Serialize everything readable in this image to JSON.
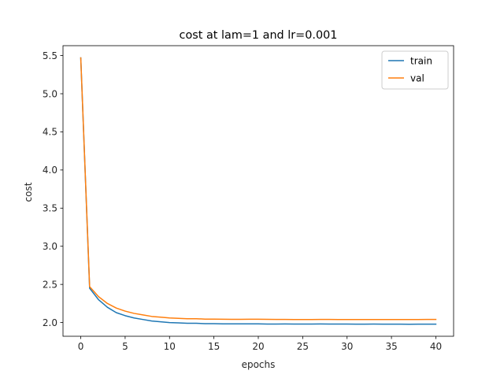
{
  "chart_data": {
    "type": "line",
    "title": "cost at lam=1 and lr=0.001",
    "xlabel": "epochs",
    "ylabel": "cost",
    "xlim": [
      -2,
      42
    ],
    "ylim": [
      1.82,
      5.63
    ],
    "xticks": [
      0,
      5,
      10,
      15,
      20,
      25,
      30,
      35,
      40
    ],
    "yticks": [
      2.0,
      2.5,
      3.0,
      3.5,
      4.0,
      4.5,
      5.0,
      5.5
    ],
    "ytick_labels": [
      "2.0",
      "2.5",
      "3.0",
      "3.5",
      "4.0",
      "4.5",
      "5.0",
      "5.5"
    ],
    "grid": false,
    "legend_position": "top-right",
    "x": [
      0,
      1,
      2,
      3,
      4,
      5,
      6,
      7,
      8,
      9,
      10,
      11,
      12,
      13,
      14,
      15,
      16,
      17,
      18,
      19,
      20,
      21,
      22,
      23,
      24,
      25,
      26,
      27,
      28,
      29,
      30,
      31,
      32,
      33,
      34,
      35,
      36,
      37,
      38,
      39,
      40
    ],
    "series": [
      {
        "name": "train",
        "color": "#1f77b4",
        "values": [
          5.47,
          2.45,
          2.3,
          2.2,
          2.13,
          2.09,
          2.06,
          2.04,
          2.02,
          2.01,
          2.0,
          1.995,
          1.99,
          1.99,
          1.985,
          1.985,
          1.983,
          1.982,
          1.982,
          1.982,
          1.982,
          1.98,
          1.98,
          1.981,
          1.98,
          1.98,
          1.98,
          1.981,
          1.98,
          1.98,
          1.98,
          1.979,
          1.979,
          1.98,
          1.979,
          1.979,
          1.979,
          1.978,
          1.979,
          1.979,
          1.979
        ]
      },
      {
        "name": "val",
        "color": "#ff7f0e",
        "values": [
          5.47,
          2.47,
          2.34,
          2.25,
          2.19,
          2.15,
          2.12,
          2.1,
          2.08,
          2.07,
          2.06,
          2.055,
          2.05,
          2.05,
          2.045,
          2.045,
          2.043,
          2.042,
          2.042,
          2.043,
          2.043,
          2.042,
          2.041,
          2.041,
          2.04,
          2.04,
          2.04,
          2.041,
          2.041,
          2.04,
          2.04,
          2.04,
          2.04,
          2.04,
          2.04,
          2.04,
          2.039,
          2.039,
          2.04,
          2.041,
          2.041
        ]
      }
    ]
  }
}
